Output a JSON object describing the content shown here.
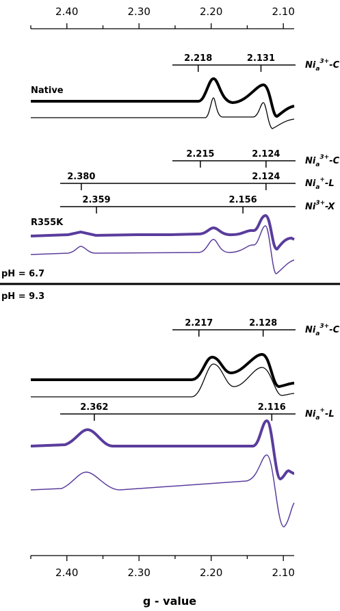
{
  "chart_data": {
    "type": "epr",
    "xlabel": "g - value",
    "xlim": [
      2.45,
      2.085
    ],
    "xticks": [
      {
        "value": 2.4,
        "label": "2.40"
      },
      {
        "value": 2.3,
        "label": "2.30"
      },
      {
        "value": 2.2,
        "label": "2.20"
      },
      {
        "value": 2.1,
        "label": "2.10"
      }
    ],
    "xminorticks": [
      2.45,
      2.35,
      2.25,
      2.15
    ],
    "ph_labels": [
      "pH = 6.7",
      "pH = 9.3"
    ],
    "panels": [
      {
        "sample": "Native",
        "markers": [
          {
            "species": {
              "base": "Ni",
              "sub": "a",
              "sup": "3+",
              "suffix": "-C"
            },
            "values": [
              2.218,
              2.131
            ]
          }
        ]
      },
      {
        "sample": "R355K",
        "markers": [
          {
            "species": {
              "base": "Ni",
              "sub": "a",
              "sup": "3+",
              "suffix": "-C"
            },
            "values": [
              2.215,
              2.124
            ]
          },
          {
            "species": {
              "base": "Ni",
              "sub": "a",
              "sup": "+",
              "suffix": "-L"
            },
            "values": [
              2.38,
              2.124
            ],
            "value_labels": [
              "2.380",
              "2.124"
            ]
          },
          {
            "species": {
              "base": "Ni",
              "sup": "3+",
              "suffix": "-X"
            },
            "values": [
              2.359,
              2.156
            ]
          }
        ]
      },
      {
        "markers": [
          {
            "species": {
              "base": "Ni",
              "sub": "a",
              "sup": "3+",
              "suffix": "-C"
            },
            "values": [
              2.217,
              2.128
            ]
          }
        ]
      },
      {
        "markers": [
          {
            "species": {
              "base": "Ni",
              "sub": "a",
              "sup": "+",
              "suffix": "-L"
            },
            "values": [
              2.362,
              2.116
            ]
          }
        ]
      }
    ]
  }
}
